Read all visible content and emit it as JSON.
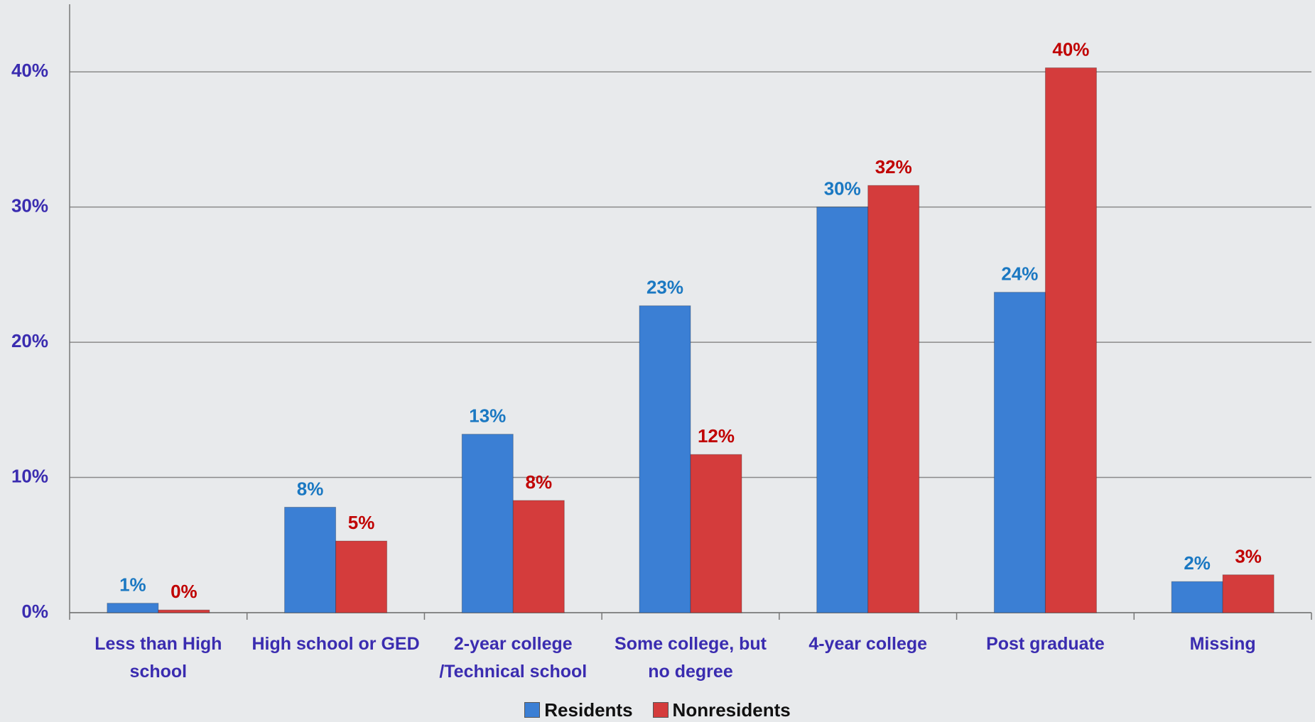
{
  "chart_data": {
    "type": "bar",
    "categories": [
      "Less than High school",
      "High school or GED",
      "2-year college /Technical school",
      "Some college, but no degree",
      "4-year college",
      "Post graduate",
      "Missing"
    ],
    "series": [
      {
        "name": "Residents",
        "color": "#3b7fd4",
        "label_color": "#1a78c2",
        "values": [
          0.7,
          7.8,
          13.2,
          22.7,
          30.0,
          23.7,
          2.3
        ],
        "value_labels": [
          "1%",
          "8%",
          "13%",
          "23%",
          "30%",
          "24%",
          "2%"
        ]
      },
      {
        "name": "Nonresidents",
        "color": "#d43c3c",
        "label_color": "#c00000",
        "values": [
          0.2,
          5.3,
          8.3,
          11.7,
          31.6,
          40.3,
          2.8
        ],
        "value_labels": [
          "0%",
          "5%",
          "8%",
          "12%",
          "32%",
          "40%",
          "3%"
        ]
      }
    ],
    "ylim": [
      0,
      45
    ],
    "yticks": [
      {
        "value": 0,
        "label": "0%"
      },
      {
        "value": 10,
        "label": "10%"
      },
      {
        "value": 20,
        "label": "20%"
      },
      {
        "value": 30,
        "label": "30%"
      },
      {
        "value": 40,
        "label": "40%"
      }
    ],
    "grid": true,
    "legend": "bottom"
  }
}
